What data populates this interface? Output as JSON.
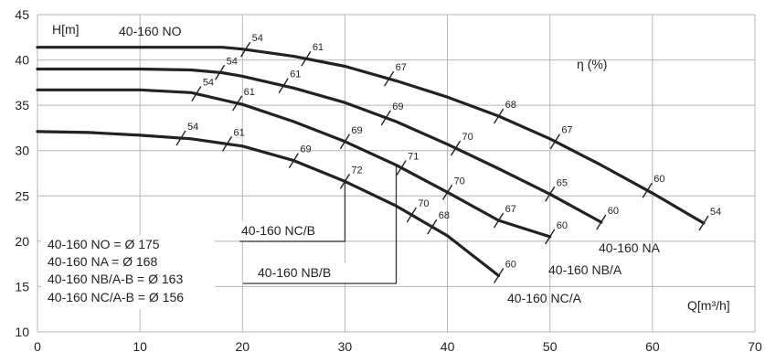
{
  "chart_data": {
    "type": "line",
    "xlim": [
      0,
      70
    ],
    "ylim": [
      10,
      45
    ],
    "x_ticks": [
      0,
      10,
      20,
      30,
      40,
      50,
      60,
      70
    ],
    "y_ticks": [
      10,
      15,
      20,
      25,
      30,
      35,
      40,
      45
    ],
    "xlabel": "Q[m³/h]",
    "ylabel": "H[m]",
    "efficiency_title": "η (%)",
    "grid": true,
    "series": [
      {
        "name": "40-160 NO",
        "x": [
          0,
          5,
          10,
          15,
          18,
          20,
          25,
          30,
          35,
          40,
          45,
          50,
          55,
          60,
          65
        ],
        "y": [
          41.4,
          41.4,
          41.4,
          41.4,
          41.4,
          41.2,
          40.4,
          39.3,
          37.7,
          35.9,
          33.8,
          31.3,
          28.4,
          25.3,
          22.0
        ],
        "efficiency_marks": [
          {
            "q": 20.3,
            "label": "54"
          },
          {
            "q": 26.2,
            "label": "61"
          },
          {
            "q": 34.3,
            "label": "67"
          },
          {
            "q": 45.0,
            "label": "68"
          },
          {
            "q": 50.5,
            "label": "67"
          },
          {
            "q": 59.5,
            "label": "60"
          },
          {
            "q": 65.0,
            "label": "54"
          }
        ]
      },
      {
        "name": "40-160 NA",
        "x": [
          0,
          5,
          10,
          15,
          18,
          20,
          25,
          30,
          35,
          40,
          45,
          50,
          55
        ],
        "y": [
          39.0,
          39.0,
          39.0,
          38.9,
          38.6,
          38.2,
          36.9,
          35.3,
          33.2,
          30.7,
          28.0,
          25.2,
          22.1
        ],
        "efficiency_marks": [
          {
            "q": 17.8,
            "label": "54"
          },
          {
            "q": 24.0,
            "label": "61"
          },
          {
            "q": 34.0,
            "label": "69"
          },
          {
            "q": 40.8,
            "label": "70"
          },
          {
            "q": 50.0,
            "label": "65"
          },
          {
            "q": 55.0,
            "label": "60"
          }
        ]
      },
      {
        "name": "40-160 NB/A",
        "x": [
          0,
          5,
          10,
          15,
          20,
          25,
          30,
          35,
          40,
          45,
          50
        ],
        "y": [
          36.7,
          36.7,
          36.7,
          36.4,
          35.1,
          33.2,
          31.0,
          28.4,
          25.4,
          22.3,
          20.5
        ],
        "efficiency_marks": [
          {
            "q": 15.5,
            "label": "54"
          },
          {
            "q": 19.5,
            "label": "61"
          },
          {
            "q": 30.0,
            "label": "69"
          },
          {
            "q": 35.5,
            "label": "71"
          },
          {
            "q": 40.0,
            "label": "70"
          },
          {
            "q": 45.0,
            "label": "67"
          },
          {
            "q": 50.0,
            "label": "60"
          }
        ]
      },
      {
        "name": "40-160 NC/A",
        "x": [
          0,
          5,
          10,
          15,
          20,
          25,
          30,
          35,
          40,
          45
        ],
        "y": [
          32.1,
          32.0,
          31.7,
          31.3,
          30.5,
          28.9,
          26.6,
          23.9,
          20.6,
          16.2
        ],
        "efficiency_marks": [
          {
            "q": 14.0,
            "label": "54"
          },
          {
            "q": 18.5,
            "label": "61"
          },
          {
            "q": 25.0,
            "label": "69"
          },
          {
            "q": 30.0,
            "label": "72"
          },
          {
            "q": 36.5,
            "label": "70"
          },
          {
            "q": 38.5,
            "label": "68"
          },
          {
            "q": 45.0,
            "label": "60"
          }
        ]
      }
    ],
    "inner_curve_labels": [
      {
        "text": "40-160 NC/B",
        "q": 30
      },
      {
        "text": "40-160 NB/B",
        "q": 35
      }
    ],
    "impeller_legend": [
      "40-160 NO = Ø 175",
      "40-160 NA = Ø 168",
      "40-160 NB/A-B = Ø 163",
      "40-160 NC/A-B = Ø 156"
    ]
  }
}
